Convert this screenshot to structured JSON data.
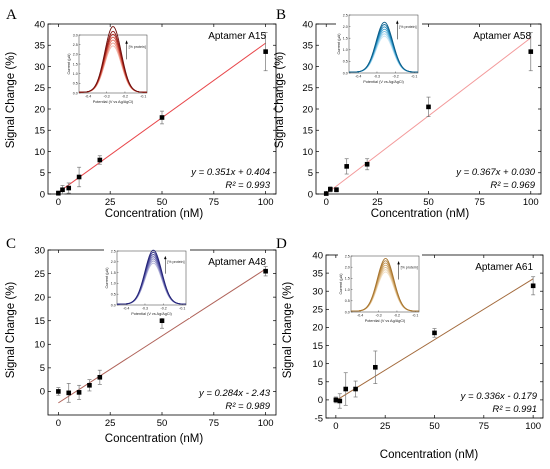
{
  "chart_data": [
    {
      "panel": "A",
      "type": "scatter",
      "title": "Aptamer A15",
      "xlabel": "Concentration (nM)",
      "ylabel": "Signal Change (%)",
      "xlim": [
        -5,
        105
      ],
      "ylim": [
        0,
        40
      ],
      "xticks": [
        0,
        25,
        50,
        75,
        100
      ],
      "yticks": [
        0,
        5,
        10,
        15,
        20,
        25,
        30,
        35,
        40
      ],
      "grid": false,
      "fit_color": "#e8464a",
      "fit": {
        "slope": 0.351,
        "intercept": 0.404
      },
      "equation": "y = 0.351x + 0.404",
      "r2": "R² = 0.993",
      "points": [
        {
          "x": 0,
          "y": 0.2,
          "err": 0.5
        },
        {
          "x": 2,
          "y": 1.0,
          "err": 1.0
        },
        {
          "x": 5,
          "y": 1.4,
          "err": 1.2
        },
        {
          "x": 10,
          "y": 4.0,
          "err": 2.3
        },
        {
          "x": 20,
          "y": 8.0,
          "err": 1.0
        },
        {
          "x": 50,
          "y": 18.0,
          "err": 1.5
        },
        {
          "x": 100,
          "y": 33.5,
          "err": 4.5
        }
      ],
      "inset": {
        "xlabel": "Potential (V vs Ag/AgCl)",
        "ylabel": "Current (µA)",
        "xticks": [
          "-0.4",
          "-0.3",
          "-0.2",
          "-0.1"
        ],
        "yticks": [
          "0.0",
          "0.5",
          "1.0",
          "1.5",
          "2.0",
          "2.5",
          "3.0"
        ],
        "ymax": 3.0,
        "arrow_label": "[% protein]",
        "peak_center": -0.265,
        "peak_heights": [
          2.4,
          2.55,
          2.7,
          2.85,
          3.0,
          3.15,
          3.4
        ],
        "colors": [
          "#f3b5a8",
          "#eb9383",
          "#e0705e",
          "#cc4a3b",
          "#b0281f",
          "#8e1914",
          "#6e0e0b"
        ]
      }
    },
    {
      "panel": "B",
      "type": "scatter",
      "title": "Aptamer A58",
      "xlabel": "Concentration (nM)",
      "ylabel": "Signal Change (%)",
      "xlim": [
        -5,
        105
      ],
      "ylim": [
        0,
        40
      ],
      "xticks": [
        0,
        25,
        50,
        75,
        100
      ],
      "yticks": [
        0,
        5,
        10,
        15,
        20,
        25,
        30,
        35,
        40
      ],
      "grid": false,
      "fit_color": "#f39a9b",
      "fit": {
        "slope": 0.367,
        "intercept": 0.03
      },
      "equation": "y = 0.367x + 0.030",
      "r2": "R² = 0.969",
      "points": [
        {
          "x": 0,
          "y": 0.1,
          "err": 0.3
        },
        {
          "x": 2,
          "y": 1.1,
          "err": 0.6
        },
        {
          "x": 5,
          "y": 1.0,
          "err": 0.5
        },
        {
          "x": 10,
          "y": 6.5,
          "err": 1.8
        },
        {
          "x": 20,
          "y": 7.0,
          "err": 1.3
        },
        {
          "x": 50,
          "y": 20.5,
          "err": 2.3
        },
        {
          "x": 100,
          "y": 33.5,
          "err": 4.5
        }
      ],
      "inset": {
        "xlabel": "Potential (V vs Ag/AgCl)",
        "ylabel": "Current (µA)",
        "xticks": [
          "-0.4",
          "-0.3",
          "-0.2",
          "-0.1"
        ],
        "yticks": [
          "0.0",
          "0.5",
          "1.0",
          "1.5",
          "2.0",
          "2.5"
        ],
        "ymax": 2.5,
        "arrow_label": "[% protein]",
        "peak_center": -0.26,
        "peak_heights": [
          1.55,
          1.65,
          1.75,
          1.85,
          1.95,
          2.05,
          2.15
        ],
        "colors": [
          "#c7e6f5",
          "#a1d3ec",
          "#73bde0",
          "#46a6d2",
          "#2088bd",
          "#0f6e9f",
          "#0a5c87"
        ]
      }
    },
    {
      "panel": "C",
      "type": "scatter",
      "title": "Aptamer A48",
      "xlabel": "Concentration (nM)",
      "ylabel": "Signal Change (%)",
      "xlim": [
        -5,
        105
      ],
      "ylim": [
        -5,
        30
      ],
      "xticks": [
        0,
        25,
        50,
        75,
        100
      ],
      "yticks": [
        0,
        5,
        10,
        15,
        20,
        25,
        30
      ],
      "grid": false,
      "fit_color": "#b0635a",
      "fit": {
        "slope": 0.284,
        "intercept": -2.43
      },
      "equation": "y = 0.284x - 2.43",
      "r2": "R² = 0.989",
      "points": [
        {
          "x": 0,
          "y": 0.0,
          "err": 0.8
        },
        {
          "x": 5,
          "y": -0.3,
          "err": 2.0
        },
        {
          "x": 10,
          "y": -0.2,
          "err": 1.5
        },
        {
          "x": 15,
          "y": 1.3,
          "err": 1.2
        },
        {
          "x": 20,
          "y": 3.0,
          "err": 1.5
        },
        {
          "x": 50,
          "y": 15.0,
          "err": 1.6
        },
        {
          "x": 100,
          "y": 25.5,
          "err": 1.0
        }
      ],
      "inset": {
        "xlabel": "Potential (V vs Ag/AgCl)",
        "ylabel": "Current (µA)",
        "xticks": [
          "-0.4",
          "-0.3",
          "-0.2",
          "-0.1"
        ],
        "yticks": [
          "0.0",
          "0.5",
          "1.0",
          "1.5",
          "2.0",
          "2.5"
        ],
        "ymax": 2.5,
        "arrow_label": "[% protein]",
        "peak_center": -0.255,
        "peak_heights": [
          1.9,
          2.0,
          2.1,
          2.2,
          2.3,
          2.4,
          2.5
        ],
        "colors": [
          "#b8b8dc",
          "#9b9bcc",
          "#7d7dbd",
          "#6262ad",
          "#4a4a9b",
          "#353588",
          "#222276"
        ]
      }
    },
    {
      "panel": "D",
      "type": "scatter",
      "title": "Aptamer A61",
      "xlabel": "Concentration (nM)",
      "ylabel": "Signal Change (%)",
      "xlim": [
        -5,
        105
      ],
      "ylim": [
        -5,
        40
      ],
      "xticks": [
        0,
        25,
        50,
        75,
        100
      ],
      "yticks": [
        -5,
        0,
        5,
        10,
        15,
        20,
        25,
        30,
        35,
        40
      ],
      "grid": false,
      "fit_color": "#a36a3c",
      "fit": {
        "slope": 0.336,
        "intercept": -0.179
      },
      "equation": "y = 0.336x - 0.179",
      "r2": "R² = 0.991",
      "points": [
        {
          "x": 0,
          "y": 0.0,
          "err": 0.8
        },
        {
          "x": 2,
          "y": -0.3,
          "err": 2.0
        },
        {
          "x": 5,
          "y": 3.0,
          "err": 4.5
        },
        {
          "x": 10,
          "y": 3.0,
          "err": 2.2
        },
        {
          "x": 20,
          "y": 9.0,
          "err": 4.5
        },
        {
          "x": 50,
          "y": 18.5,
          "err": 1.2
        },
        {
          "x": 100,
          "y": 31.5,
          "err": 2.5
        }
      ],
      "inset": {
        "xlabel": "Potential (V vs Ag/AgCl)",
        "ylabel": "Current (µA)",
        "xticks": [
          "-0.4",
          "-0.3",
          "-0.2",
          "-0.1"
        ],
        "yticks": [
          "0.0",
          "0.5",
          "1.0",
          "1.5",
          "2.0",
          "2.5"
        ],
        "ymax": 2.5,
        "arrow_label": "[% protein]",
        "peak_center": -0.262,
        "peak_heights": [
          1.75,
          1.85,
          1.95,
          2.05,
          2.15,
          2.25,
          2.35
        ],
        "colors": [
          "#f2dfc2",
          "#e8cda4",
          "#ddbb88",
          "#d1a86c",
          "#c49654",
          "#b5843f",
          "#a6742e"
        ]
      }
    }
  ]
}
